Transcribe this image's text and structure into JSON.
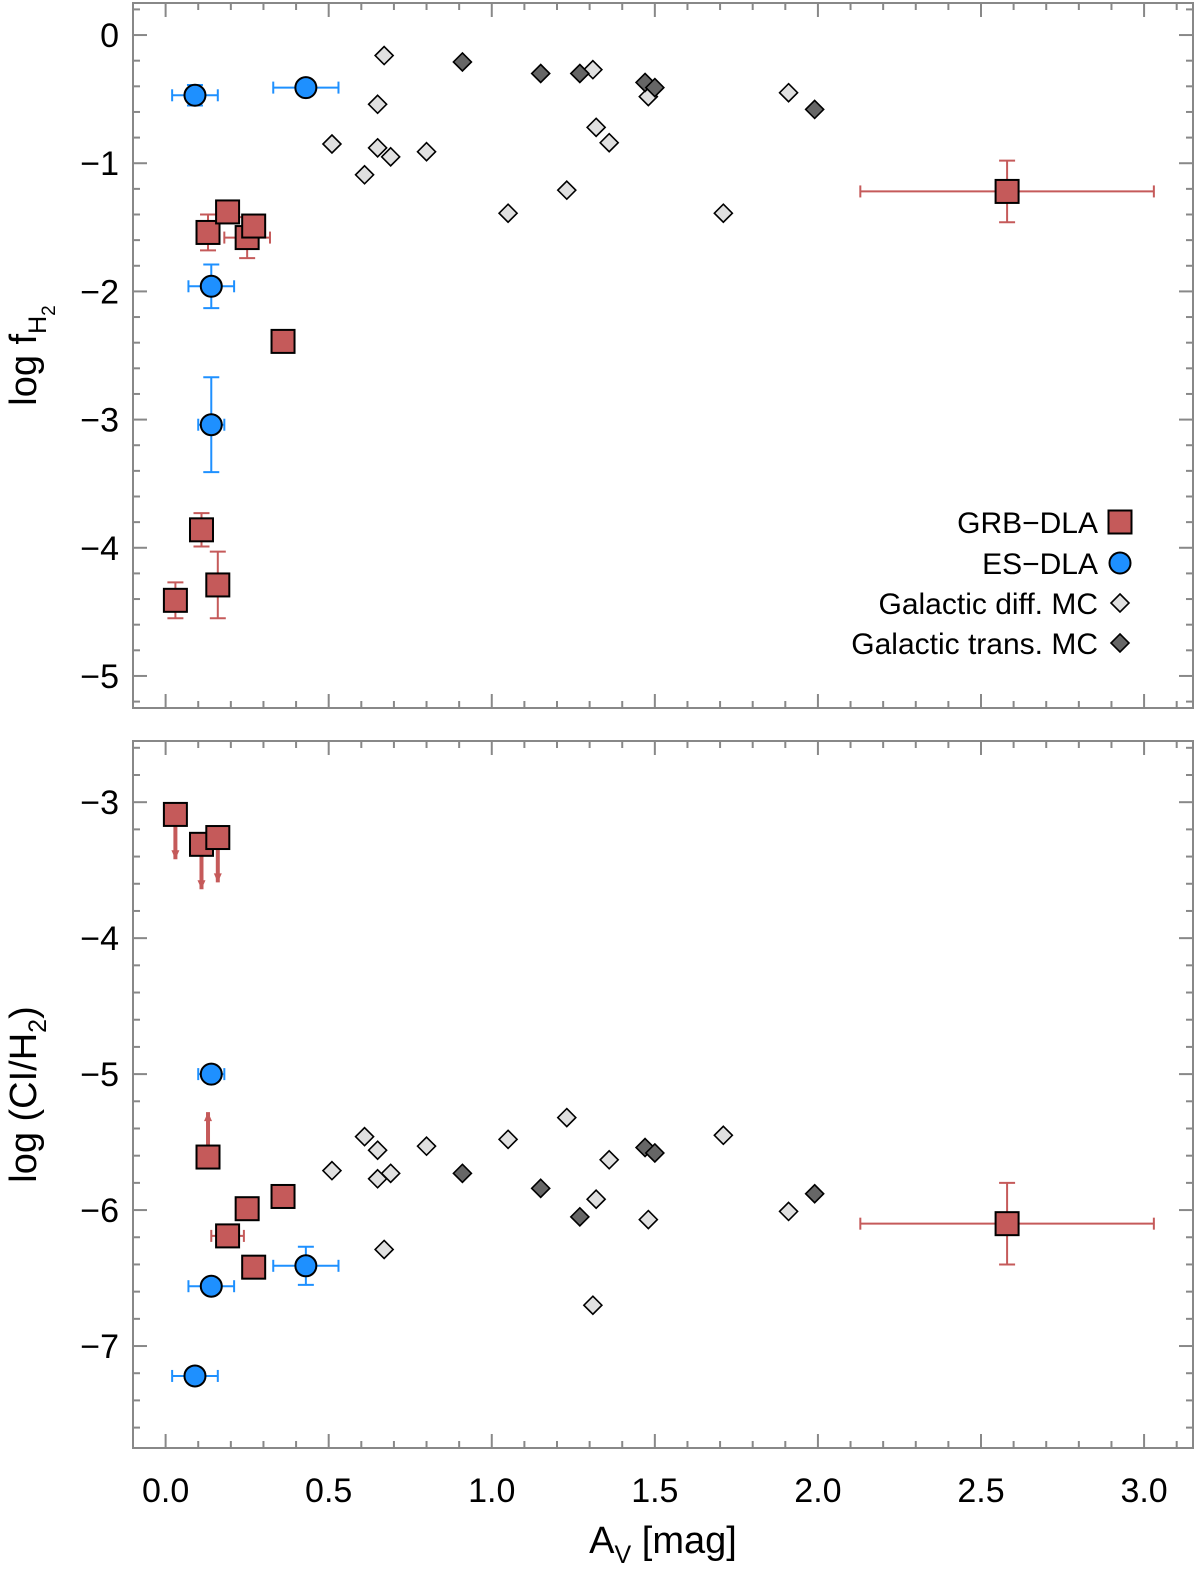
{
  "colors": {
    "grb": "#c55a5a",
    "es": "#1e90ff",
    "diff": "#e0e0e0",
    "trans": "#666666",
    "axis": "#888888"
  },
  "xaxis": {
    "label_main": "A",
    "label_sub": "V",
    "label_rest": " [mag]",
    "range": [
      -0.1,
      3.15
    ],
    "ticks": [
      0.0,
      0.5,
      1.0,
      1.5,
      2.0,
      2.5,
      3.0
    ],
    "tick_labels": [
      "0.0",
      "0.5",
      "1.0",
      "1.5",
      "2.0",
      "2.5",
      "3.0"
    ]
  },
  "chart_data": [
    {
      "type": "scatter",
      "id": "top",
      "ylabel_main": "log f",
      "ylabel_sub": "H",
      "ylabel_subsub": "2",
      "ylim": [
        -5.25,
        0.25
      ],
      "yticks": [
        0,
        -1,
        -2,
        -3,
        -4,
        -5
      ],
      "ytick_labels": [
        "0",
        "−1",
        "−2",
        "−3",
        "−4",
        "−5"
      ],
      "legend": {
        "position": "lower-right",
        "entries": [
          "GRB−DLA",
          "ES−DLA",
          "Galactic diff. MC",
          "Galactic trans. MC"
        ]
      },
      "series": [
        {
          "name": "GRB−DLA",
          "marker": "square",
          "points": [
            {
              "x": 0.03,
              "y": -4.41,
              "ey": 0.14
            },
            {
              "x": 0.11,
              "y": -3.86,
              "ey": 0.13
            },
            {
              "x": 0.16,
              "y": -4.29,
              "ey": 0.26
            },
            {
              "x": 0.13,
              "y": -1.54,
              "ey": 0.14
            },
            {
              "x": 0.19,
              "y": -1.38,
              "ey": 0.08
            },
            {
              "x": 0.25,
              "y": -1.58,
              "ey": 0.16,
              "ex": 0.07
            },
            {
              "x": 0.27,
              "y": -1.49,
              "ey": 0.08
            },
            {
              "x": 0.36,
              "y": -2.39
            },
            {
              "x": 2.58,
              "y": -1.22,
              "ey": 0.24,
              "ex": 0.45
            }
          ]
        },
        {
          "name": "ES−DLA",
          "marker": "circle",
          "points": [
            {
              "x": 0.09,
              "y": -0.47,
              "ex": 0.07,
              "ey": 0.08
            },
            {
              "x": 0.43,
              "y": -0.41,
              "ex": 0.1
            },
            {
              "x": 0.14,
              "y": -1.96,
              "ex": 0.07,
              "ey": 0.17
            },
            {
              "x": 0.14,
              "y": -3.04,
              "ex": 0.04,
              "ey": 0.37
            }
          ]
        },
        {
          "name": "Galactic diff. MC",
          "marker": "diamond",
          "points": [
            {
              "x": 0.51,
              "y": -0.85
            },
            {
              "x": 0.61,
              "y": -1.09
            },
            {
              "x": 0.65,
              "y": -0.54
            },
            {
              "x": 0.65,
              "y": -0.88
            },
            {
              "x": 0.67,
              "y": -0.16
            },
            {
              "x": 0.69,
              "y": -0.95
            },
            {
              "x": 0.8,
              "y": -0.91
            },
            {
              "x": 1.05,
              "y": -1.39
            },
            {
              "x": 1.23,
              "y": -1.21
            },
            {
              "x": 1.31,
              "y": -0.27
            },
            {
              "x": 1.32,
              "y": -0.72
            },
            {
              "x": 1.36,
              "y": -0.84
            },
            {
              "x": 1.48,
              "y": -0.48
            },
            {
              "x": 1.71,
              "y": -1.39
            },
            {
              "x": 1.91,
              "y": -0.45
            }
          ]
        },
        {
          "name": "Galactic trans. MC",
          "marker": "diamond",
          "points": [
            {
              "x": 0.91,
              "y": -0.21
            },
            {
              "x": 1.15,
              "y": -0.3
            },
            {
              "x": 1.27,
              "y": -0.3
            },
            {
              "x": 1.47,
              "y": -0.37
            },
            {
              "x": 1.5,
              "y": -0.41
            },
            {
              "x": 1.99,
              "y": -0.58
            }
          ]
        }
      ]
    },
    {
      "type": "scatter",
      "id": "bottom",
      "ylabel_main": "log (CI/H",
      "ylabel_sub": "2",
      "ylabel_rest": ")",
      "ylim": [
        -7.75,
        -2.55
      ],
      "yticks": [
        -3,
        -4,
        -5,
        -6,
        -7
      ],
      "ytick_labels": [
        "−3",
        "−4",
        "−5",
        "−6",
        "−7"
      ],
      "series": [
        {
          "name": "GRB−DLA",
          "marker": "square",
          "points": [
            {
              "x": 0.03,
              "y": -3.09,
              "limit": "upper",
              "arrow": 0.33
            },
            {
              "x": 0.11,
              "y": -3.31,
              "limit": "upper",
              "arrow": 0.33
            },
            {
              "x": 0.16,
              "y": -3.26,
              "limit": "upper",
              "arrow": 0.33
            },
            {
              "x": 0.13,
              "y": -5.61,
              "limit": "lower",
              "arrow": 0.33
            },
            {
              "x": 0.19,
              "y": -6.19,
              "ex": 0.05
            },
            {
              "x": 0.25,
              "y": -5.99
            },
            {
              "x": 0.27,
              "y": -6.42
            },
            {
              "x": 0.36,
              "y": -5.9
            },
            {
              "x": 2.58,
              "y": -6.1,
              "ex": 0.45,
              "ey": 0.3
            }
          ]
        },
        {
          "name": "ES−DLA",
          "marker": "circle",
          "points": [
            {
              "x": 0.14,
              "y": -5.0,
              "ex": 0.04
            },
            {
              "x": 0.14,
              "y": -6.56,
              "ex": 0.07
            },
            {
              "x": 0.43,
              "y": -6.41,
              "ex": 0.1,
              "ey": 0.14
            },
            {
              "x": 0.09,
              "y": -7.22,
              "ex": 0.07
            }
          ]
        },
        {
          "name": "Galactic diff. MC",
          "marker": "diamond",
          "points": [
            {
              "x": 0.51,
              "y": -5.71
            },
            {
              "x": 0.61,
              "y": -5.46
            },
            {
              "x": 0.65,
              "y": -5.56
            },
            {
              "x": 0.65,
              "y": -5.77
            },
            {
              "x": 0.67,
              "y": -6.29
            },
            {
              "x": 0.69,
              "y": -5.73
            },
            {
              "x": 0.8,
              "y": -5.53
            },
            {
              "x": 1.05,
              "y": -5.48
            },
            {
              "x": 1.23,
              "y": -5.32
            },
            {
              "x": 1.31,
              "y": -6.7
            },
            {
              "x": 1.32,
              "y": -5.92
            },
            {
              "x": 1.36,
              "y": -5.63
            },
            {
              "x": 1.48,
              "y": -6.07
            },
            {
              "x": 1.71,
              "y": -5.45
            },
            {
              "x": 1.91,
              "y": -6.01
            }
          ]
        },
        {
          "name": "Galactic trans. MC",
          "marker": "diamond",
          "points": [
            {
              "x": 0.91,
              "y": -5.73
            },
            {
              "x": 1.15,
              "y": -5.84
            },
            {
              "x": 1.27,
              "y": -6.05
            },
            {
              "x": 1.47,
              "y": -5.54
            },
            {
              "x": 1.5,
              "y": -5.58
            },
            {
              "x": 1.99,
              "y": -5.88
            }
          ]
        }
      ]
    }
  ]
}
